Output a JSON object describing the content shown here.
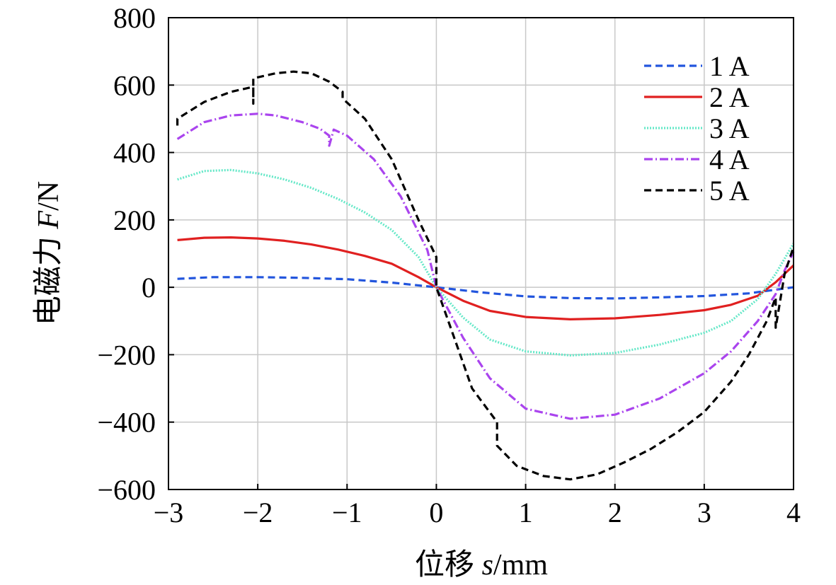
{
  "chart_data": {
    "type": "line",
    "xlabel_prefix": "位移 ",
    "xlabel_var": "s",
    "xlabel_unit": "/mm",
    "ylabel_prefix": "电磁力 ",
    "ylabel_var": "F",
    "ylabel_unit": "/N",
    "xlim": [
      -3,
      4
    ],
    "ylim": [
      -600,
      800
    ],
    "xticks": [
      -3,
      -2,
      -1,
      0,
      1,
      2,
      3,
      4
    ],
    "yticks": [
      -600,
      -400,
      -200,
      0,
      200,
      400,
      600,
      800
    ],
    "xtick_labels": [
      "−3",
      "−2",
      "−1",
      "0",
      "1",
      "2",
      "3",
      "4"
    ],
    "ytick_labels": [
      "−600",
      "−400",
      "−200",
      "0",
      "200",
      "400",
      "600",
      "800"
    ],
    "grid": true,
    "legend_position": "top-right",
    "series": [
      {
        "name": "1 A",
        "color": "#2255dd",
        "dash": "10,6",
        "x": [
          -2.9,
          -2.5,
          -2.0,
          -1.5,
          -1.0,
          -0.5,
          0.0,
          0.5,
          1.0,
          1.5,
          2.0,
          2.5,
          3.0,
          3.5,
          4.0
        ],
        "y": [
          25,
          30,
          30,
          28,
          24,
          14,
          0,
          -15,
          -27,
          -32,
          -33,
          -30,
          -26,
          -18,
          0
        ]
      },
      {
        "name": "2 A",
        "color": "#e02020",
        "dash": "",
        "x": [
          -2.9,
          -2.6,
          -2.3,
          -2.0,
          -1.7,
          -1.4,
          -1.1,
          -0.8,
          -0.5,
          -0.2,
          0.0,
          0.3,
          0.6,
          1.0,
          1.5,
          2.0,
          2.5,
          3.0,
          3.3,
          3.6,
          3.8,
          4.0
        ],
        "y": [
          140,
          147,
          148,
          145,
          138,
          127,
          112,
          93,
          70,
          30,
          0,
          -40,
          -70,
          -88,
          -95,
          -92,
          -82,
          -68,
          -52,
          -25,
          15,
          65
        ]
      },
      {
        "name": "3 A",
        "color": "#66e8c8",
        "dash": "2,2",
        "x": [
          -2.9,
          -2.6,
          -2.3,
          -2.0,
          -1.7,
          -1.4,
          -1.1,
          -0.8,
          -0.5,
          -0.2,
          0.0,
          0.3,
          0.6,
          1.0,
          1.5,
          2.0,
          2.5,
          3.0,
          3.3,
          3.6,
          3.8,
          4.0
        ],
        "y": [
          320,
          345,
          348,
          338,
          320,
          295,
          262,
          222,
          170,
          90,
          0,
          -90,
          -155,
          -190,
          -202,
          -195,
          -170,
          -135,
          -100,
          -35,
          40,
          130
        ]
      },
      {
        "name": "4 A",
        "color": "#aa44ee",
        "dash": "12,4,2,4",
        "x": [
          -2.9,
          -2.6,
          -2.3,
          -2.0,
          -1.8,
          -1.5,
          -1.3,
          -1.2,
          -1.2,
          -1.15,
          -1.0,
          -0.7,
          -0.4,
          -0.1,
          0.0,
          0.3,
          0.6,
          1.0,
          1.5,
          2.0,
          2.5,
          3.0,
          3.3,
          3.6,
          3.8,
          3.9,
          4.0
        ],
        "y": [
          440,
          490,
          510,
          515,
          510,
          490,
          470,
          450,
          420,
          468,
          450,
          380,
          270,
          110,
          0,
          -150,
          -270,
          -360,
          -390,
          -378,
          -330,
          -255,
          -190,
          -100,
          -20,
          50,
          105
        ]
      },
      {
        "name": "5 A",
        "color": "#000000",
        "dash": "10,6",
        "x": [
          -2.9,
          -2.9,
          -2.6,
          -2.3,
          -2.05,
          -2.05,
          -2.05,
          -1.8,
          -1.6,
          -1.4,
          -1.2,
          -1.05,
          -1.05,
          -0.8,
          -0.5,
          -0.2,
          0.0,
          0.0,
          0.2,
          0.4,
          0.68,
          0.68,
          0.9,
          1.2,
          1.5,
          1.8,
          2.1,
          2.4,
          2.7,
          3.0,
          3.3,
          3.5,
          3.7,
          3.8,
          3.8,
          3.9,
          4.0
        ],
        "y": [
          480,
          500,
          550,
          580,
          595,
          545,
          620,
          635,
          640,
          635,
          610,
          580,
          560,
          500,
          380,
          200,
          90,
          0,
          -150,
          -300,
          -400,
          -470,
          -530,
          -560,
          -570,
          -555,
          -520,
          -480,
          -430,
          -370,
          -280,
          -200,
          -100,
          -30,
          -120,
          40,
          120
        ]
      }
    ]
  }
}
